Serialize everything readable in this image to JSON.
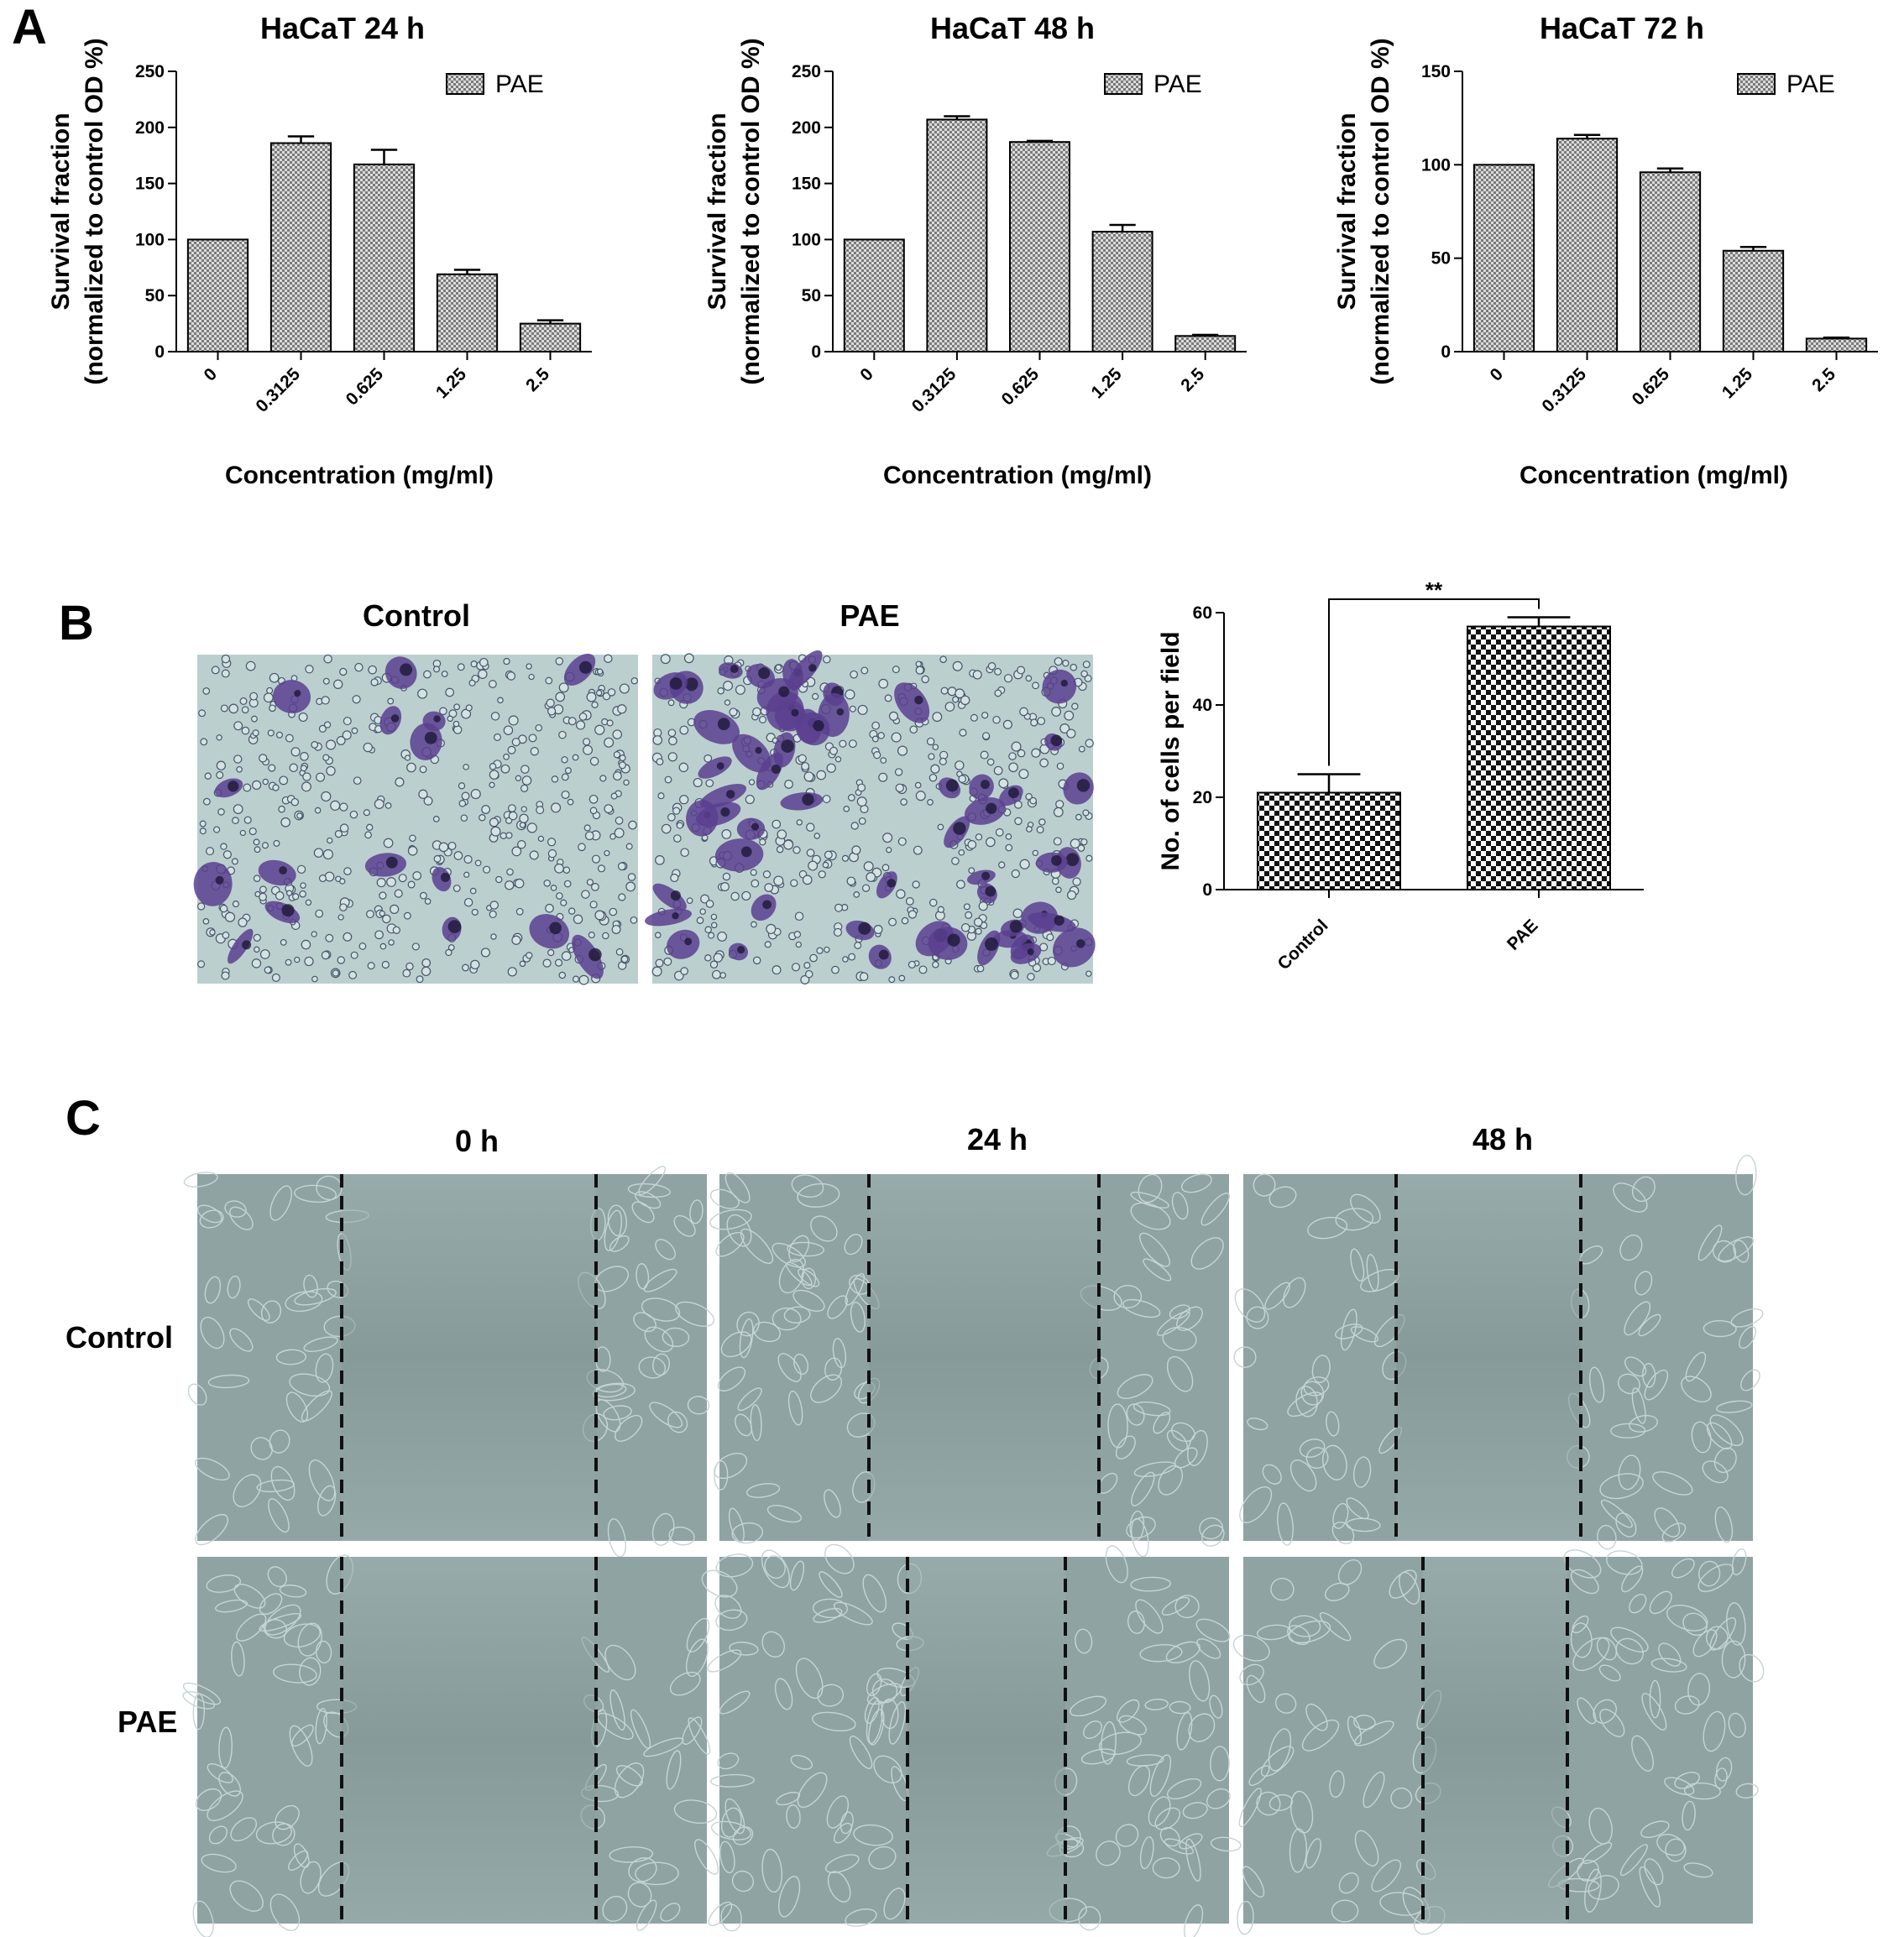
{
  "panels": {
    "a": {
      "letter": "A"
    },
    "b": {
      "letter": "B",
      "image_titles": [
        "Control",
        "PAE"
      ]
    },
    "c": {
      "letter": "C",
      "columns": [
        "0 h",
        "24 h",
        "48 h"
      ],
      "rows": [
        "Control",
        "PAE"
      ]
    }
  },
  "colors": {
    "bar_fill": "#8c8c8c",
    "stained_cells": "#5a3f8f",
    "micrograph_b_bg": "#bccfcf",
    "micrograph_c_bg": "#8fa3a3",
    "scratch_line": "#111111"
  },
  "chart_data": [
    {
      "type": "bar",
      "title": "HaCaT 24 h",
      "xlabel": "Concentration (mg/ml)",
      "ylabel": [
        "Survival fraction",
        "(normalized to control OD  %)"
      ],
      "categories": [
        "0",
        "0.3125",
        "0.625",
        "1.25",
        "2.5"
      ],
      "series": [
        {
          "name": "PAE",
          "values": [
            100,
            186,
            167,
            69,
            25
          ],
          "errors": [
            0,
            6,
            13,
            4,
            3
          ]
        }
      ],
      "ylim": [
        0,
        250
      ],
      "yticks": [
        0,
        50,
        100,
        150,
        200,
        250
      ],
      "legend": "top-right",
      "grid": false
    },
    {
      "type": "bar",
      "title": "HaCaT 48 h",
      "xlabel": "Concentration (mg/ml)",
      "ylabel": [
        "Survival fraction",
        "(normalized to control OD  %)"
      ],
      "categories": [
        "0",
        "0.3125",
        "0.625",
        "1.25",
        "2.5"
      ],
      "series": [
        {
          "name": "PAE",
          "values": [
            100,
            207,
            187,
            107,
            14
          ],
          "errors": [
            0,
            3,
            1,
            6,
            1
          ]
        }
      ],
      "ylim": [
        0,
        250
      ],
      "yticks": [
        0,
        50,
        100,
        150,
        200,
        250
      ],
      "legend": "top-right",
      "grid": false
    },
    {
      "type": "bar",
      "title": "HaCaT 72 h",
      "xlabel": "Concentration (mg/ml)",
      "ylabel": [
        "Survival fraction",
        "(normalized to control OD  %)"
      ],
      "categories": [
        "0",
        "0.3125",
        "0.625",
        "1.25",
        "2.5"
      ],
      "series": [
        {
          "name": "PAE",
          "values": [
            100,
            114,
            96,
            54,
            7
          ],
          "errors": [
            0,
            2,
            2,
            2,
            0.5
          ]
        }
      ],
      "ylim": [
        0,
        150
      ],
      "yticks": [
        0,
        50,
        100,
        150
      ],
      "legend": "top-right",
      "grid": false
    },
    {
      "type": "bar",
      "title": "",
      "xlabel": "",
      "ylabel": [
        "No. of cells per field"
      ],
      "categories": [
        "Control",
        "PAE"
      ],
      "series": [
        {
          "values": [
            21,
            57
          ],
          "errors": [
            4,
            2
          ]
        }
      ],
      "ylim": [
        0,
        60
      ],
      "yticks": [
        0,
        20,
        40,
        60
      ],
      "annotations": [
        {
          "text": "**",
          "between": [
            "Control",
            "PAE"
          ]
        }
      ],
      "grid": false
    }
  ]
}
